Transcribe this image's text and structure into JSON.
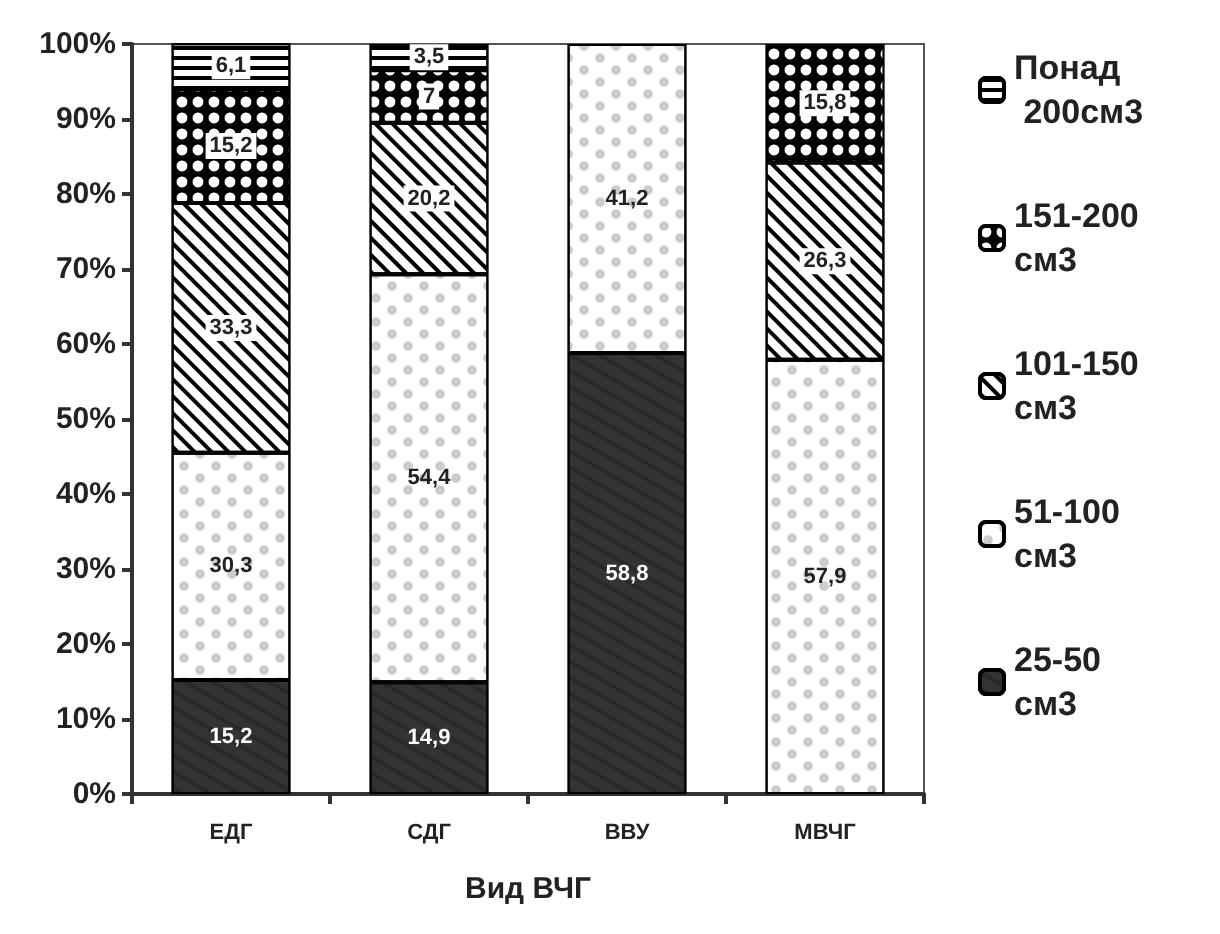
{
  "chart_data": {
    "type": "bar",
    "stacked": true,
    "xlabel": "Вид ВЧГ",
    "categories": [
      "ЕДГ",
      "СДГ",
      "ВВУ",
      "МВЧГ"
    ],
    "series": [
      {
        "name": "25-50 см3",
        "color": "#333333",
        "values": [
          15.2,
          14.9,
          58.8,
          null
        ],
        "value_labels": [
          "15,2",
          "14,9",
          "58,8",
          null
        ]
      },
      {
        "name": "51-100 см3",
        "color": "#ffffff",
        "values": [
          30.3,
          54.4,
          41.2,
          57.9
        ],
        "value_labels": [
          "30,3",
          "54,4",
          "41,2",
          "57,9"
        ]
      },
      {
        "name": "101-150 см3",
        "color": "#ffffff",
        "values": [
          33.3,
          20.2,
          null,
          26.3
        ],
        "value_labels": [
          "33,3",
          "20,2",
          null,
          "26,3"
        ]
      },
      {
        "name": "151-200 см3",
        "color": "#000000",
        "values": [
          15.2,
          7,
          null,
          15.8
        ],
        "value_labels": [
          "15,2",
          "7",
          null,
          "15,8"
        ]
      },
      {
        "name": "Понад 200см3",
        "color": "#ffffff",
        "values": [
          6.1,
          3.5,
          null,
          null
        ],
        "value_labels": [
          "6,1",
          "3,5",
          null,
          null
        ]
      }
    ],
    "ylim": [
      0,
      100
    ],
    "yticks": [
      {
        "value": 0,
        "label": "0%"
      },
      {
        "value": 10,
        "label": "10%"
      },
      {
        "value": 20,
        "label": "20%"
      },
      {
        "value": 30,
        "label": "30%"
      },
      {
        "value": 40,
        "label": "40%"
      },
      {
        "value": 50,
        "label": "50%"
      },
      {
        "value": 60,
        "label": "60%"
      },
      {
        "value": 70,
        "label": "70%"
      },
      {
        "value": 80,
        "label": "80%"
      },
      {
        "value": 90,
        "label": "90%"
      },
      {
        "value": 100,
        "label": "100%"
      }
    ],
    "legend": "right"
  }
}
